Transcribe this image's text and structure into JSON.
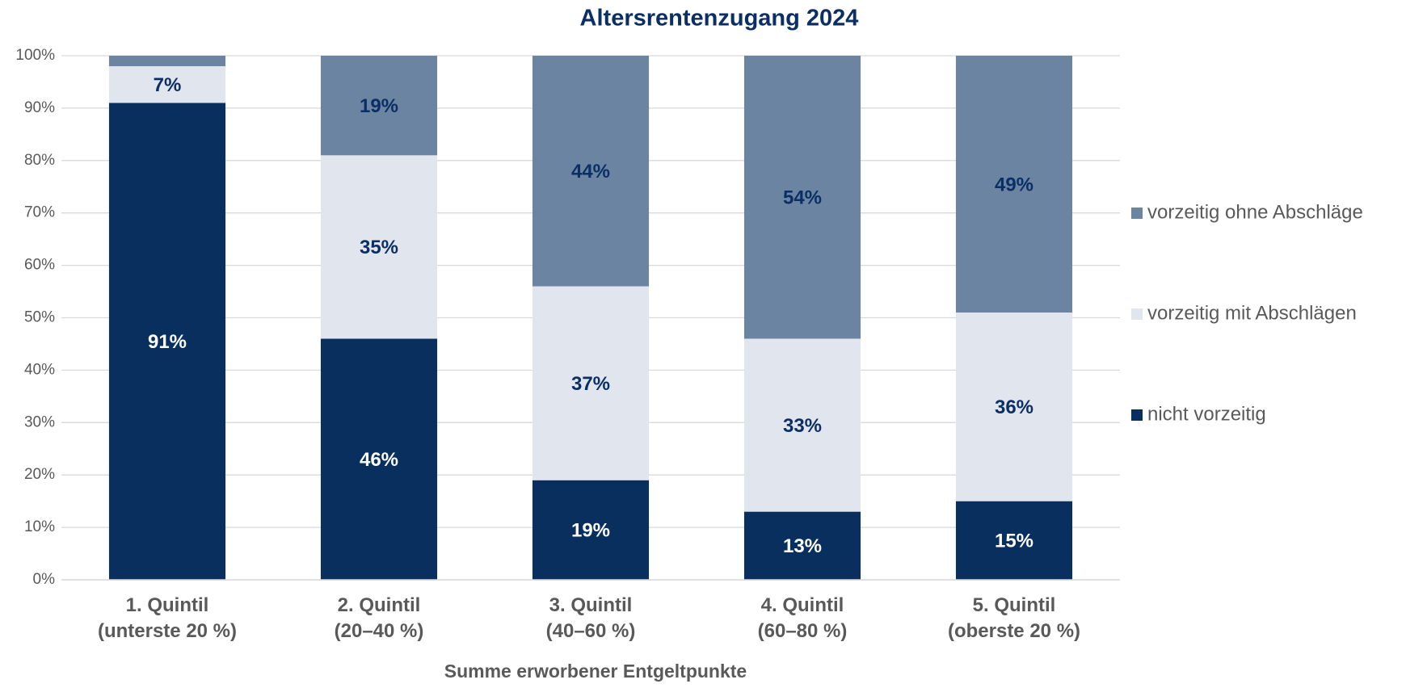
{
  "chart_data": {
    "type": "stacked_bar",
    "title": "Altersrentenzugang 2024",
    "x_label": "Summe erworbener Entgeltpunkte",
    "categories": [
      [
        "1. Quintil",
        "(unterste 20 %)"
      ],
      [
        "2. Quintil",
        "(20–40 %)"
      ],
      [
        "3. Quintil",
        "(40–60 %)"
      ],
      [
        "4. Quintil",
        "(60–80 %)"
      ],
      [
        "5. Quintil",
        "(oberste 20 %)"
      ]
    ],
    "series": [
      {
        "name": "nicht vorzeitig",
        "color": "#082f5e",
        "label_color": "#ffffff",
        "values": [
          91,
          46,
          19,
          13,
          15
        ],
        "value_labels": [
          "91%",
          "46%",
          "19%",
          "13%",
          "15%"
        ]
      },
      {
        "name": "vorzeitig mit Abschlägen",
        "color": "#e1e5ee",
        "label_color": "#0b2f64",
        "values": [
          7,
          35,
          37,
          33,
          36
        ],
        "value_labels": [
          "7%",
          "35%",
          "37%",
          "33%",
          "36%"
        ]
      },
      {
        "name": "vorzeitig ohne Abschläge",
        "color": "#6b84a2",
        "label_color": "#0b2f64",
        "values": [
          2,
          19,
          44,
          54,
          49
        ],
        "value_labels": [
          null,
          "19%",
          "44%",
          "54%",
          "49%"
        ]
      }
    ],
    "ylim": [
      0,
      100
    ],
    "yticks": [
      {
        "value": 0,
        "label": "0%"
      },
      {
        "value": 10,
        "label": "10%"
      },
      {
        "value": 20,
        "label": "20%"
      },
      {
        "value": 30,
        "label": "30%"
      },
      {
        "value": 40,
        "label": "40%"
      },
      {
        "value": 50,
        "label": "50%"
      },
      {
        "value": 60,
        "label": "60%"
      },
      {
        "value": 70,
        "label": "70%"
      },
      {
        "value": 80,
        "label": "80%"
      },
      {
        "value": 90,
        "label": "90%"
      },
      {
        "value": 100,
        "label": "100%"
      }
    ],
    "grid": true,
    "legend": "right"
  }
}
